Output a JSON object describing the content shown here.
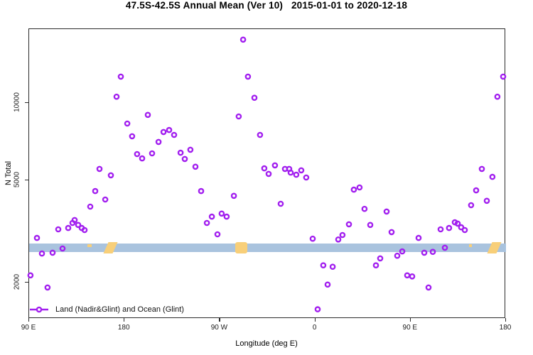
{
  "chart_data": {
    "type": "scatter",
    "title": "47.5S-42.5S Annual Mean (Ver 10)   2015-01-01 to 2020-12-18",
    "xlabel": "Longitude (deg E)",
    "ylabel": "N Total",
    "y_scale": "log",
    "ylim": [
      1440,
      19500
    ],
    "x_axis_span_deg": 450,
    "x_ticks": [
      {
        "pos": 0,
        "label": "90 E"
      },
      {
        "pos": 90,
        "label": "180"
      },
      {
        "pos": 180,
        "label": "90 W"
      },
      {
        "pos": 270,
        "label": "0"
      },
      {
        "pos": 360,
        "label": "90 E"
      },
      {
        "pos": 450,
        "label": "180"
      }
    ],
    "y_ticks": [
      {
        "value": 2000,
        "label": "2000"
      },
      {
        "value": 5000,
        "label": "5000"
      },
      {
        "value": 10000,
        "label": "10000"
      }
    ],
    "legend": {
      "label": "Land (Nadir&Glint) and Ocean (Glint)",
      "marker": "line-open-circle"
    },
    "colors": {
      "point": "#A21FEF",
      "band_ocean": "#A9C3DE",
      "band_land": "#F8CF79",
      "axis": "#2b2b2b"
    },
    "band": {
      "value_top": 2840,
      "value_bottom": 2630,
      "land_segments": [
        {
          "d0": 55,
          "d1": 59,
          "kind": "speck"
        },
        {
          "d0": 72.5,
          "d1": 81.5,
          "kind": "streak"
        },
        {
          "d0": 194.5,
          "d1": 206,
          "kind": "blob"
        },
        {
          "d0": 415,
          "d1": 417.5,
          "kind": "speck"
        },
        {
          "d0": 434.5,
          "d1": 443,
          "kind": "streak"
        }
      ]
    },
    "points": [
      [
        1.3,
        2130
      ],
      [
        7.4,
        2980
      ],
      [
        12.1,
        2590
      ],
      [
        17.4,
        1910
      ],
      [
        22.1,
        2610
      ],
      [
        27.5,
        3220
      ],
      [
        31.5,
        2710
      ],
      [
        36.9,
        3260
      ],
      [
        40.9,
        3410
      ],
      [
        42.9,
        3500
      ],
      [
        46.3,
        3350
      ],
      [
        49.6,
        3260
      ],
      [
        52.3,
        3200
      ],
      [
        57.7,
        3950
      ],
      [
        62.4,
        4540
      ],
      [
        66.4,
        5540
      ],
      [
        71.8,
        4210
      ],
      [
        77.1,
        5230
      ],
      [
        82.5,
        10600
      ],
      [
        86.5,
        12700
      ],
      [
        92.6,
        8330
      ],
      [
        97.2,
        7430
      ],
      [
        101.9,
        6330
      ],
      [
        106.6,
        6090
      ],
      [
        112.0,
        9000
      ],
      [
        116.0,
        6370
      ],
      [
        122.1,
        7060
      ],
      [
        126.8,
        7720
      ],
      [
        132.1,
        7860
      ],
      [
        136.8,
        7520
      ],
      [
        142.9,
        6410
      ],
      [
        146.9,
        6060
      ],
      [
        152.2,
        6580
      ],
      [
        156.9,
        5650
      ],
      [
        162.3,
        4540
      ],
      [
        167.7,
        3410
      ],
      [
        172.4,
        3610
      ],
      [
        177.7,
        3080
      ],
      [
        181.7,
        3710
      ],
      [
        186.4,
        3610
      ],
      [
        193.2,
        4350
      ],
      [
        197.8,
        8880
      ],
      [
        201.9,
        17700
      ],
      [
        206.5,
        12700
      ],
      [
        212.6,
        10500
      ],
      [
        217.9,
        7520
      ],
      [
        221.9,
        5570
      ],
      [
        226.0,
        5300
      ],
      [
        232.0,
        5720
      ],
      [
        237.4,
        4050
      ],
      [
        241.4,
        5540
      ],
      [
        245.4,
        5540
      ],
      [
        246.8,
        5360
      ],
      [
        252.1,
        5260
      ],
      [
        256.8,
        5470
      ],
      [
        261.5,
        5130
      ],
      [
        267.6,
        2960
      ],
      [
        272.3,
        1570
      ],
      [
        277.6,
        2330
      ],
      [
        281.7,
        1960
      ],
      [
        286.4,
        2300
      ],
      [
        291.7,
        2940
      ],
      [
        295.7,
        3060
      ],
      [
        301.8,
        3370
      ],
      [
        306.4,
        4600
      ],
      [
        311.8,
        4690
      ],
      [
        316.5,
        3870
      ],
      [
        321.9,
        3350
      ],
      [
        327.3,
        2330
      ],
      [
        331.3,
        2480
      ],
      [
        337.3,
        3780
      ],
      [
        342.0,
        3140
      ],
      [
        347.4,
        2540
      ],
      [
        352.1,
        2640
      ],
      [
        356.8,
        2130
      ],
      [
        361.5,
        2110
      ],
      [
        367.5,
        2980
      ],
      [
        372.9,
        2610
      ],
      [
        376.9,
        1910
      ],
      [
        380.9,
        2630
      ],
      [
        388.3,
        3220
      ],
      [
        392.3,
        2730
      ],
      [
        396.3,
        3260
      ],
      [
        401.7,
        3430
      ],
      [
        404.4,
        3390
      ],
      [
        407.7,
        3280
      ],
      [
        411.1,
        3200
      ],
      [
        417.1,
        4000
      ],
      [
        421.8,
        4570
      ],
      [
        427.2,
        5540
      ],
      [
        431.9,
        4160
      ],
      [
        437.2,
        5160
      ],
      [
        441.9,
        10600
      ],
      [
        447.3,
        12700
      ]
    ]
  }
}
